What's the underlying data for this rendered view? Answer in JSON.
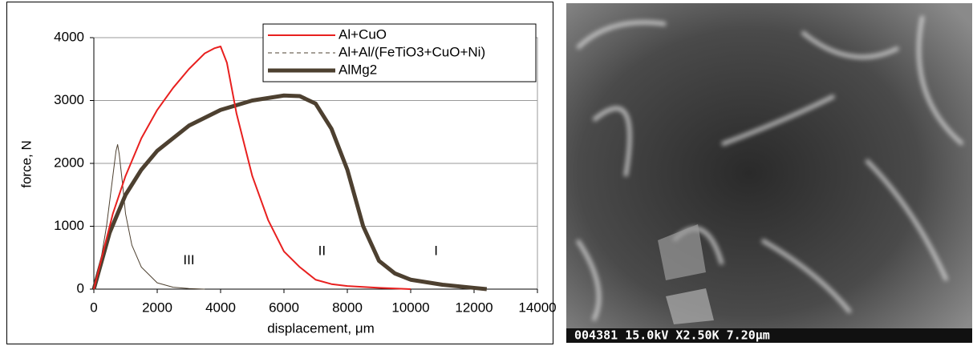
{
  "chart_data": {
    "type": "line",
    "xlabel": "displacement, μm",
    "ylabel": "force, N",
    "xlim": [
      0,
      14000
    ],
    "ylim": [
      0,
      4000
    ],
    "xticks": [
      0,
      2000,
      4000,
      6000,
      8000,
      10000,
      12000,
      14000
    ],
    "yticks": [
      0,
      1000,
      2000,
      3000,
      4000
    ],
    "grid": true,
    "legend": "upper right",
    "series": [
      {
        "name": "Al+CuO",
        "color": "#e8201f",
        "width": 2,
        "dash": false,
        "x": [
          0,
          300,
          600,
          1000,
          1500,
          2000,
          2500,
          3000,
          3500,
          3800,
          4000,
          4200,
          4500,
          5000,
          5500,
          6000,
          6500,
          7000,
          7500,
          8000,
          9000,
          10000
        ],
        "values": [
          0,
          600,
          1200,
          1800,
          2400,
          2850,
          3200,
          3500,
          3750,
          3830,
          3860,
          3600,
          2800,
          1800,
          1100,
          600,
          350,
          150,
          80,
          50,
          20,
          0
        ]
      },
      {
        "name": "Al+Al/(FeTiO3+CuO+Ni)",
        "color": "#4d4030",
        "width": 1,
        "dash": true,
        "x": [
          0,
          200,
          400,
          600,
          700,
          750,
          800,
          900,
          1000,
          1200,
          1500,
          2000,
          2500,
          3000,
          3500
        ],
        "values": [
          0,
          400,
          1000,
          1800,
          2200,
          2300,
          2150,
          1700,
          1200,
          700,
          350,
          100,
          30,
          10,
          0
        ]
      },
      {
        "name": "AlMg2",
        "color": "#4d4030",
        "width": 5,
        "dash": false,
        "x": [
          0,
          500,
          1000,
          1500,
          2000,
          3000,
          4000,
          5000,
          6000,
          6500,
          7000,
          7500,
          8000,
          8500,
          9000,
          9500,
          10000,
          11000,
          12000,
          12400
        ],
        "values": [
          0,
          900,
          1500,
          1900,
          2200,
          2600,
          2850,
          3000,
          3080,
          3070,
          2950,
          2550,
          1900,
          1000,
          450,
          250,
          150,
          70,
          20,
          0
        ]
      }
    ],
    "annotations": [
      {
        "text": "III",
        "x": 3000,
        "y": 450
      },
      {
        "text": "II",
        "x": 7200,
        "y": 600
      },
      {
        "text": "I",
        "x": 10800,
        "y": 600
      }
    ]
  },
  "image": {
    "caption": "004381 15.0kV X2.50K 7.20μm"
  }
}
